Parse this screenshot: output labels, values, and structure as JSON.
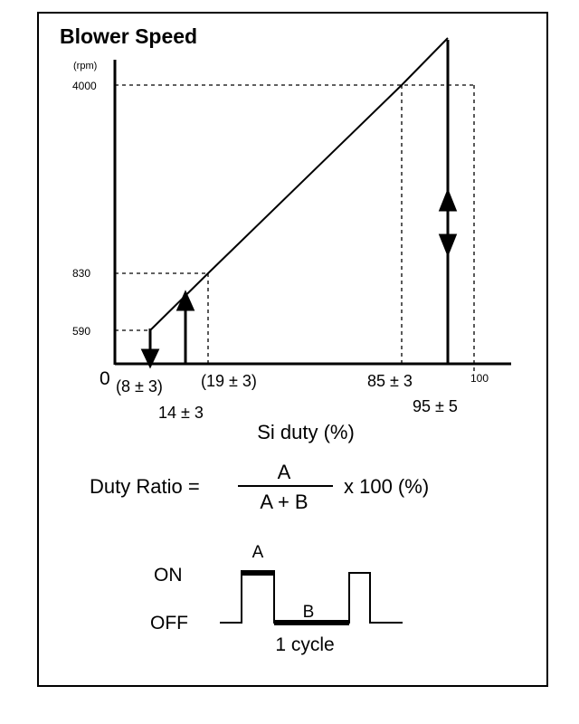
{
  "chart_data": {
    "type": "line",
    "title": "Blower Speed",
    "y_unit": "(rpm)",
    "xlabel": "Si duty (%)",
    "x_origin_label": "0",
    "x_tick_100": "100",
    "y_ticks": [
      {
        "label": "4000",
        "value": 4000
      },
      {
        "label": "830",
        "value": 830
      },
      {
        "label": "590",
        "value": 590
      }
    ],
    "series": [
      {
        "x": [
          8,
          19,
          85,
          95
        ],
        "y": [
          590,
          830,
          4000,
          4300
        ]
      }
    ],
    "x_annotations": {
      "a": "(8 ± 3)",
      "b": "14 ± 3",
      "c": "(19 ± 3)",
      "d": "85 ± 3",
      "e": "95 ± 5"
    },
    "colors": {
      "ink": "#000000",
      "background": "#ffffff"
    }
  },
  "formula": {
    "left": "Duty Ratio =",
    "numerator": "A",
    "denominator": "A + B",
    "right": "x 100 (%)"
  },
  "waveform": {
    "on_label": "ON",
    "off_label": "OFF",
    "a_label": "A",
    "b_label": "B",
    "cycle_label": "1 cycle"
  }
}
